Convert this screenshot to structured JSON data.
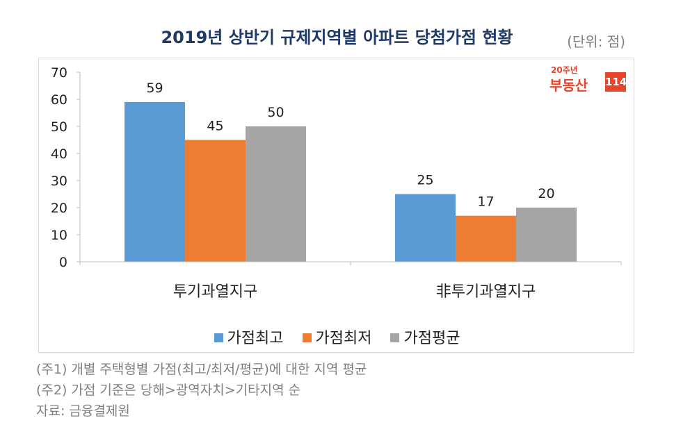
{
  "title": "2019년 상반기 규제지역별 아파트 당첨가점 현황",
  "unit": "(단위: 점)",
  "logo": {
    "top": "20주년",
    "brand": "부동산",
    "num": "114"
  },
  "colors": {
    "series": [
      "#5b9bd5",
      "#ed7d31",
      "#a5a5a5"
    ]
  },
  "chart_data": {
    "type": "bar",
    "categories": [
      "투기과열지구",
      "非투기과열지구"
    ],
    "series": [
      {
        "name": "가점최고",
        "values": [
          59,
          25
        ]
      },
      {
        "name": "가점최저",
        "values": [
          45,
          17
        ]
      },
      {
        "name": "가점평균",
        "values": [
          50,
          20
        ]
      }
    ],
    "ylim": [
      0,
      70
    ],
    "yticks": [
      0,
      10,
      20,
      30,
      40,
      50,
      60,
      70
    ],
    "data_labels": true,
    "grid": false,
    "legend_position": "bottom"
  },
  "notes": [
    "(주1) 개별 주택형별 가점(최고/최저/평균)에 대한 지역 평균",
    "(주2) 가점 기준은 당해>광역자치>기타지역 순",
    "자료: 금융결제원"
  ]
}
